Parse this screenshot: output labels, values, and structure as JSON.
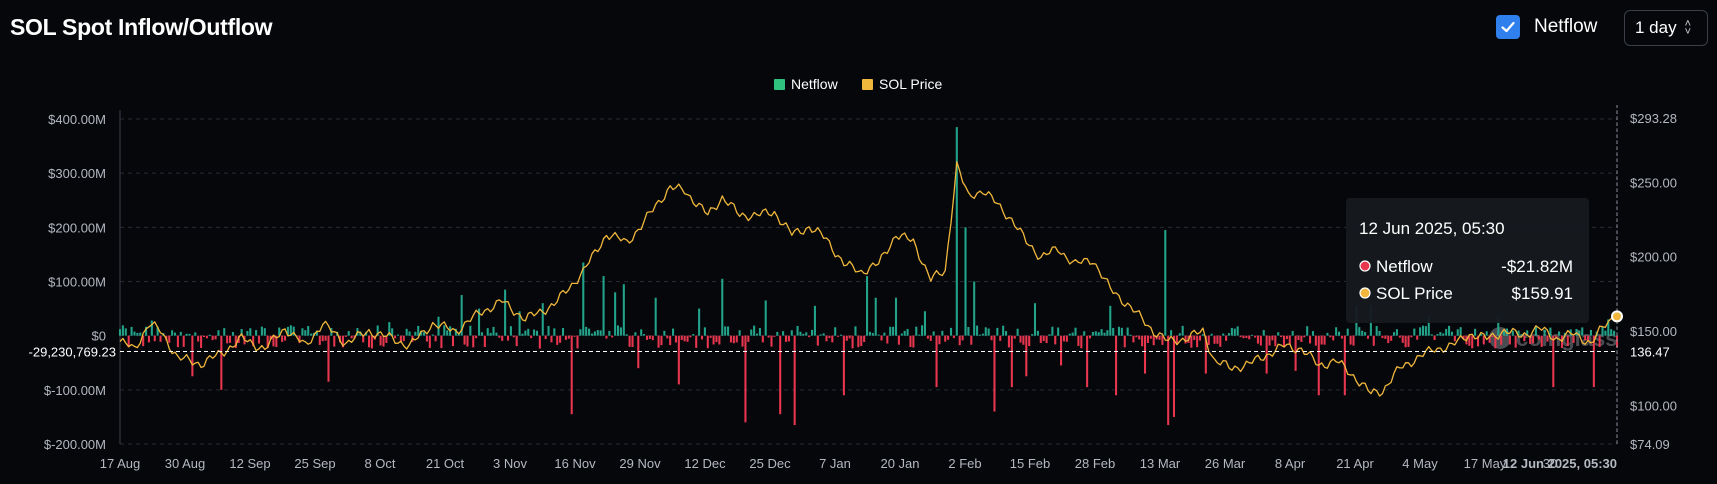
{
  "header": {
    "title": "SOL Spot Inflow/Outflow",
    "toggle_label": "Netflow",
    "interval": "1 day"
  },
  "chart_data": {
    "type": "bar+line",
    "title": "SOL Spot Inflow/Outflow",
    "x_labels": [
      "17 Aug",
      "30 Aug",
      "12 Sep",
      "25 Sep",
      "8 Oct",
      "21 Oct",
      "3 Nov",
      "16 Nov",
      "29 Nov",
      "12 Dec",
      "25 Dec",
      "7 Jan",
      "20 Jan",
      "2 Feb",
      "15 Feb",
      "28 Feb",
      "13 Mar",
      "26 Mar",
      "8 Apr",
      "21 Apr",
      "4 May",
      "17 May",
      "30",
      "12 Jun 2025, 05:30"
    ],
    "left_axis": {
      "ticks": [
        "$400.00M",
        "$300.00M",
        "$200.00M",
        "$100.00M",
        "$0",
        "$-100.00M",
        "$-200.00M"
      ],
      "range": [
        -200,
        400
      ],
      "unit": "$M"
    },
    "right_axis": {
      "ticks": [
        "$293.28",
        "$250.00",
        "$200.00",
        "$150.00",
        "$100.00",
        "$74.09"
      ],
      "range": [
        74.09,
        293.28
      ]
    },
    "crosshair": {
      "left_value": "-29,230,769.23",
      "right_value": "136.47"
    },
    "legend": {
      "position": "top-center",
      "items": [
        {
          "name": "Netflow",
          "color": "#2ec27e"
        },
        {
          "name": "SOL Price",
          "color": "#f0b73c"
        }
      ]
    },
    "colors": {
      "inflow": "#22a38a",
      "outflow": "#e8364f",
      "price": "#f0b73c"
    },
    "watermark": "coinglass",
    "tooltip": {
      "date": "12 Jun 2025, 05:30",
      "rows": [
        {
          "label": "Netflow",
          "value": "-$21.82M",
          "color": "#e8364f"
        },
        {
          "label": "SOL Price",
          "value": "$159.91",
          "color": "#f0b73c"
        }
      ]
    },
    "netflow_spikes_musd": [
      {
        "day": 0,
        "value": 12
      },
      {
        "day": 11,
        "value": 28
      },
      {
        "day": 25,
        "value": -75
      },
      {
        "day": 35,
        "value": -100
      },
      {
        "day": 55,
        "value": 15
      },
      {
        "day": 72,
        "value": -85
      },
      {
        "day": 93,
        "value": 25
      },
      {
        "day": 110,
        "value": 35
      },
      {
        "day": 118,
        "value": 75
      },
      {
        "day": 124,
        "value": 50
      },
      {
        "day": 133,
        "value": 85
      },
      {
        "day": 138,
        "value": 45
      },
      {
        "day": 146,
        "value": 60
      },
      {
        "day": 156,
        "value": -145
      },
      {
        "day": 160,
        "value": 135
      },
      {
        "day": 167,
        "value": 110
      },
      {
        "day": 171,
        "value": 80
      },
      {
        "day": 174,
        "value": 95
      },
      {
        "day": 179,
        "value": -60
      },
      {
        "day": 185,
        "value": 70
      },
      {
        "day": 193,
        "value": -90
      },
      {
        "day": 200,
        "value": 50
      },
      {
        "day": 208,
        "value": 105
      },
      {
        "day": 216,
        "value": -160
      },
      {
        "day": 223,
        "value": 65
      },
      {
        "day": 228,
        "value": -145
      },
      {
        "day": 233,
        "value": -165
      },
      {
        "day": 240,
        "value": 55
      },
      {
        "day": 250,
        "value": -110
      },
      {
        "day": 258,
        "value": 110
      },
      {
        "day": 261,
        "value": 70
      },
      {
        "day": 268,
        "value": 70
      },
      {
        "day": 278,
        "value": 45
      },
      {
        "day": 282,
        "value": -95
      },
      {
        "day": 289,
        "value": 385
      },
      {
        "day": 292,
        "value": 200
      },
      {
        "day": 295,
        "value": 100
      },
      {
        "day": 302,
        "value": -140
      },
      {
        "day": 308,
        "value": -95
      },
      {
        "day": 313,
        "value": -75
      },
      {
        "day": 316,
        "value": 60
      },
      {
        "day": 325,
        "value": -55
      },
      {
        "day": 334,
        "value": -95
      },
      {
        "day": 342,
        "value": 55
      },
      {
        "day": 344,
        "value": -110
      },
      {
        "day": 354,
        "value": -70
      },
      {
        "day": 361,
        "value": 195
      },
      {
        "day": 362,
        "value": -165
      },
      {
        "day": 364,
        "value": -150
      },
      {
        "day": 375,
        "value": -70
      },
      {
        "day": 396,
        "value": -70
      },
      {
        "day": 406,
        "value": -65
      },
      {
        "day": 414,
        "value": -110
      },
      {
        "day": 423,
        "value": -110
      },
      {
        "day": 427,
        "value": 55
      },
      {
        "day": 432,
        "value": 55
      },
      {
        "day": 452,
        "value": 35
      },
      {
        "day": 476,
        "value": 32
      },
      {
        "day": 495,
        "value": -95
      },
      {
        "day": 509,
        "value": -95
      },
      {
        "day": 514,
        "value": 30
      },
      {
        "day": 517,
        "value": -85
      }
    ],
    "price_anchors_usd": [
      {
        "day": 0,
        "value": 143
      },
      {
        "day": 5,
        "value": 138
      },
      {
        "day": 10,
        "value": 155
      },
      {
        "day": 14,
        "value": 150
      },
      {
        "day": 20,
        "value": 132
      },
      {
        "day": 28,
        "value": 128
      },
      {
        "day": 35,
        "value": 135
      },
      {
        "day": 42,
        "value": 145
      },
      {
        "day": 50,
        "value": 138
      },
      {
        "day": 57,
        "value": 152
      },
      {
        "day": 64,
        "value": 140
      },
      {
        "day": 70,
        "value": 155
      },
      {
        "day": 78,
        "value": 142
      },
      {
        "day": 86,
        "value": 150
      },
      {
        "day": 94,
        "value": 145
      },
      {
        "day": 100,
        "value": 140
      },
      {
        "day": 108,
        "value": 155
      },
      {
        "day": 116,
        "value": 150
      },
      {
        "day": 124,
        "value": 162
      },
      {
        "day": 132,
        "value": 170
      },
      {
        "day": 140,
        "value": 158
      },
      {
        "day": 150,
        "value": 168
      },
      {
        "day": 160,
        "value": 190
      },
      {
        "day": 168,
        "value": 215
      },
      {
        "day": 175,
        "value": 210
      },
      {
        "day": 180,
        "value": 220
      },
      {
        "day": 185,
        "value": 235
      },
      {
        "day": 190,
        "value": 246
      },
      {
        "day": 195,
        "value": 245
      },
      {
        "day": 198,
        "value": 238
      },
      {
        "day": 203,
        "value": 228
      },
      {
        "day": 208,
        "value": 240
      },
      {
        "day": 214,
        "value": 228
      },
      {
        "day": 220,
        "value": 228
      },
      {
        "day": 226,
        "value": 230
      },
      {
        "day": 232,
        "value": 215
      },
      {
        "day": 238,
        "value": 220
      },
      {
        "day": 244,
        "value": 212
      },
      {
        "day": 250,
        "value": 195
      },
      {
        "day": 256,
        "value": 190
      },
      {
        "day": 262,
        "value": 195
      },
      {
        "day": 268,
        "value": 215
      },
      {
        "day": 274,
        "value": 210
      },
      {
        "day": 280,
        "value": 185
      },
      {
        "day": 285,
        "value": 190
      },
      {
        "day": 289,
        "value": 262
      },
      {
        "day": 293,
        "value": 240
      },
      {
        "day": 298,
        "value": 245
      },
      {
        "day": 303,
        "value": 235
      },
      {
        "day": 308,
        "value": 225
      },
      {
        "day": 313,
        "value": 210
      },
      {
        "day": 318,
        "value": 200
      },
      {
        "day": 324,
        "value": 205
      },
      {
        "day": 330,
        "value": 195
      },
      {
        "day": 336,
        "value": 198
      },
      {
        "day": 342,
        "value": 178
      },
      {
        "day": 348,
        "value": 168
      },
      {
        "day": 352,
        "value": 160
      },
      {
        "day": 357,
        "value": 150
      },
      {
        "day": 362,
        "value": 143
      },
      {
        "day": 368,
        "value": 145
      },
      {
        "day": 374,
        "value": 150
      },
      {
        "day": 378,
        "value": 130
      },
      {
        "day": 384,
        "value": 125
      },
      {
        "day": 390,
        "value": 128
      },
      {
        "day": 396,
        "value": 134
      },
      {
        "day": 402,
        "value": 140
      },
      {
        "day": 408,
        "value": 138
      },
      {
        "day": 414,
        "value": 127
      },
      {
        "day": 420,
        "value": 130
      },
      {
        "day": 426,
        "value": 120
      },
      {
        "day": 432,
        "value": 108
      },
      {
        "day": 436,
        "value": 110
      },
      {
        "day": 442,
        "value": 125
      },
      {
        "day": 448,
        "value": 132
      },
      {
        "day": 454,
        "value": 138
      },
      {
        "day": 460,
        "value": 140
      },
      {
        "day": 466,
        "value": 148
      },
      {
        "day": 472,
        "value": 145
      },
      {
        "day": 478,
        "value": 150
      },
      {
        "day": 484,
        "value": 147
      },
      {
        "day": 490,
        "value": 152
      },
      {
        "day": 496,
        "value": 145
      },
      {
        "day": 502,
        "value": 148
      },
      {
        "day": 508,
        "value": 142
      },
      {
        "day": 512,
        "value": 152
      },
      {
        "day": 516,
        "value": 159.91
      }
    ]
  }
}
